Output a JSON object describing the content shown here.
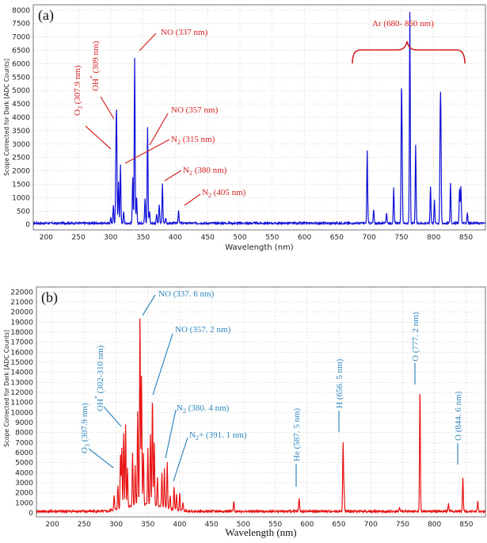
{
  "chart_data": [
    {
      "type": "line",
      "panel_label": "(a)",
      "xlabel": "Wavelength (nm)",
      "ylabel": "Scope Corrected for Dark [ADC Counts]",
      "xlim": [
        180,
        880
      ],
      "ylim": [
        -200,
        8200
      ],
      "xticks": [
        200,
        250,
        300,
        350,
        400,
        450,
        500,
        550,
        600,
        650,
        700,
        750,
        800,
        850
      ],
      "yticks": [
        0,
        500,
        1000,
        1500,
        2000,
        2500,
        3000,
        3500,
        4000,
        4500,
        5000,
        5500,
        6000,
        6500,
        7000,
        7500,
        8000
      ],
      "grid": true,
      "series": [
        {
          "color": "#1010d8",
          "baseline": 50,
          "peaks": [
            {
              "x": 300,
              "y": 250
            },
            {
              "x": 304,
              "y": 700
            },
            {
              "x": 307.9,
              "y": 2000
            },
            {
              "x": 309,
              "y": 3850
            },
            {
              "x": 312,
              "y": 1600
            },
            {
              "x": 315,
              "y": 2250
            },
            {
              "x": 320,
              "y": 500
            },
            {
              "x": 334,
              "y": 1800
            },
            {
              "x": 337,
              "y": 6250
            },
            {
              "x": 340,
              "y": 1000
            },
            {
              "x": 353,
              "y": 1000
            },
            {
              "x": 357,
              "y": 3650
            },
            {
              "x": 360,
              "y": 500
            },
            {
              "x": 371,
              "y": 400
            },
            {
              "x": 375,
              "y": 750
            },
            {
              "x": 380,
              "y": 1500
            },
            {
              "x": 385,
              "y": 250
            },
            {
              "x": 405,
              "y": 550
            },
            {
              "x": 697,
              "y": 2750
            },
            {
              "x": 707,
              "y": 550
            },
            {
              "x": 727,
              "y": 450
            },
            {
              "x": 738,
              "y": 1350
            },
            {
              "x": 750,
              "y": 4400
            },
            {
              "x": 751,
              "y": 2300
            },
            {
              "x": 763,
              "y": 7950
            },
            {
              "x": 772,
              "y": 2950
            },
            {
              "x": 795,
              "y": 1450
            },
            {
              "x": 801,
              "y": 900
            },
            {
              "x": 810,
              "y": 3350
            },
            {
              "x": 811,
              "y": 3450
            },
            {
              "x": 826,
              "y": 1550
            },
            {
              "x": 840,
              "y": 1350
            },
            {
              "x": 842,
              "y": 1450
            },
            {
              "x": 852,
              "y": 450
            }
          ]
        }
      ],
      "annotations": [
        {
          "text": "NO (337 nm)",
          "target": [
            337,
            6350
          ]
        },
        {
          "text": "NO (357 nm)",
          "target": [
            357,
            3700
          ]
        },
        {
          "text": "N2 (315 nm)",
          "target": [
            315,
            2300
          ]
        },
        {
          "text": "N2 (380 nm)",
          "target": [
            381,
            1550
          ]
        },
        {
          "text": "N2 (405 nm)",
          "target": [
            405,
            650
          ]
        },
        {
          "text": "O3 (307.9 nm)",
          "target": [
            307,
            2700
          ]
        },
        {
          "text": "OH* (309 nm)",
          "target": [
            309,
            3900
          ]
        },
        {
          "text": "Ar (680- 860 nm)",
          "span": [
            680,
            860
          ]
        }
      ],
      "annotation_color": "#d42020"
    },
    {
      "type": "line",
      "panel_label": "(b)",
      "xlabel": "Wavelength (nm)",
      "ylabel": "Scope Corrected for Dark [ADC Counts]",
      "xlim": [
        175,
        880
      ],
      "ylim": [
        -400,
        22500
      ],
      "xticks": [
        200,
        250,
        300,
        350,
        400,
        450,
        500,
        550,
        600,
        650,
        700,
        750,
        800,
        850
      ],
      "yticks": [
        0,
        1000,
        2000,
        3000,
        4000,
        5000,
        6000,
        7000,
        8000,
        9000,
        10000,
        11000,
        12000,
        13000,
        14000,
        15000,
        16000,
        17000,
        18000,
        19000,
        20000,
        21000,
        22000
      ],
      "grid": true,
      "series": [
        {
          "color": "#e81414",
          "baseline": 150,
          "peaks": [
            {
              "x": 297,
              "y": 1500
            },
            {
              "x": 303,
              "y": 2500
            },
            {
              "x": 307,
              "y": 5500
            },
            {
              "x": 309,
              "y": 6200
            },
            {
              "x": 312,
              "y": 7600
            },
            {
              "x": 315,
              "y": 8400
            },
            {
              "x": 318,
              "y": 4000
            },
            {
              "x": 326,
              "y": 5400
            },
            {
              "x": 330,
              "y": 4200
            },
            {
              "x": 334,
              "y": 9500
            },
            {
              "x": 337.6,
              "y": 19000
            },
            {
              "x": 340,
              "y": 13000
            },
            {
              "x": 343,
              "y": 5200
            },
            {
              "x": 350,
              "y": 5700
            },
            {
              "x": 354,
              "y": 7200
            },
            {
              "x": 357.2,
              "y": 10900
            },
            {
              "x": 360,
              "y": 6300
            },
            {
              "x": 365,
              "y": 3000
            },
            {
              "x": 372,
              "y": 3500
            },
            {
              "x": 376,
              "y": 4000
            },
            {
              "x": 380.4,
              "y": 4700
            },
            {
              "x": 385,
              "y": 1500
            },
            {
              "x": 391.1,
              "y": 2500
            },
            {
              "x": 395,
              "y": 1700
            },
            {
              "x": 400,
              "y": 1800
            },
            {
              "x": 405,
              "y": 1000
            },
            {
              "x": 485,
              "y": 1100
            },
            {
              "x": 587.5,
              "y": 1500
            },
            {
              "x": 656.5,
              "y": 7000
            },
            {
              "x": 658,
              "y": 2000
            },
            {
              "x": 745,
              "y": 500
            },
            {
              "x": 777.2,
              "y": 12400
            },
            {
              "x": 822,
              "y": 1000
            },
            {
              "x": 844.6,
              "y": 3500
            },
            {
              "x": 868,
              "y": 1100
            }
          ]
        }
      ],
      "annotations": [
        {
          "text": "NO (337. 6 nm)",
          "target": [
            337.6,
            19000
          ]
        },
        {
          "text": "NO (357. 2 nm)",
          "target": [
            357,
            11000
          ]
        },
        {
          "text": "N2 (380. 4 nm)",
          "target": [
            380.4,
            4800
          ]
        },
        {
          "text": "N2+ (391. 1 nm)",
          "target": [
            391,
            2600
          ]
        },
        {
          "text": "O3 (307.9 nm)",
          "target": [
            305,
            4300
          ]
        },
        {
          "text": "OH* (302-310 nm)",
          "target": [
            312,
            8400
          ]
        },
        {
          "text": "He (587. 5 nm)",
          "target": [
            587.5,
            1500
          ]
        },
        {
          "text": "H (656. 5 nm)",
          "target": [
            656.5,
            7000
          ]
        },
        {
          "text": "O (777. 2 nm)",
          "target": [
            777.2,
            12500
          ]
        },
        {
          "text": "O (844. 6 nm)",
          "target": [
            844.6,
            3600
          ]
        }
      ],
      "annotation_color": "#2e86c1"
    }
  ]
}
